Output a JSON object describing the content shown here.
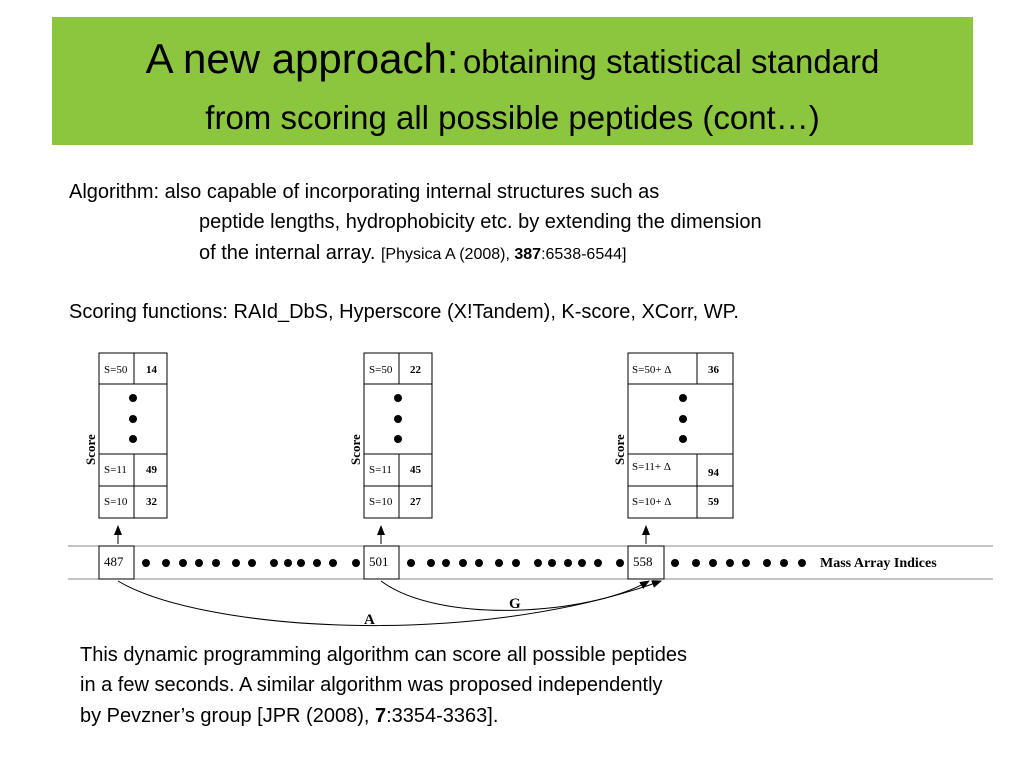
{
  "title": {
    "prefix": "A new approach:",
    "rest": "obtaining statistical standard",
    "line2": "from scoring all possible peptides (cont…)"
  },
  "algorithm": {
    "line1": "Algorithm: also capable of incorporating internal structures such as",
    "line2": "peptide lengths, hydrophobicity etc. by extending the dimension",
    "line3": "of the internal array.",
    "ref_prefix": "[Physica A  (2008), ",
    "ref_vol": "387",
    "ref_suffix": ":6538-6544]"
  },
  "scoring": "Scoring functions: RAId_DbS, Hyperscore (X!Tandem), K-score, XCorr, WP.",
  "diagram": {
    "score_label": "Score",
    "boxes": [
      {
        "top": [
          "S=50",
          "14"
        ],
        "mid": [
          "S=11",
          "49"
        ],
        "bottom": [
          "S=10",
          "32"
        ]
      },
      {
        "top": [
          "S=50",
          "22"
        ],
        "mid": [
          "S=11",
          "45"
        ],
        "bottom": [
          "S=10",
          "27"
        ]
      },
      {
        "top": [
          "S=50+ Δ",
          "36"
        ],
        "mid": [
          "S=11+ Δ",
          "94"
        ],
        "bottom": [
          "S=10+ Δ",
          "59"
        ]
      }
    ],
    "indices": [
      "487",
      "501",
      "558"
    ],
    "array_label": "Mass Array Indices",
    "arc_labels": [
      "A",
      "G"
    ]
  },
  "conclusion": {
    "line1": "This dynamic programming algorithm can score all possible peptides",
    "line2": "in a few seconds. A similar algorithm was proposed independently",
    "line3_prefix": "by Pevzner’s group [JPR (2008), ",
    "line3_vol": "7",
    "line3_suffix": ":3354-3363]."
  }
}
